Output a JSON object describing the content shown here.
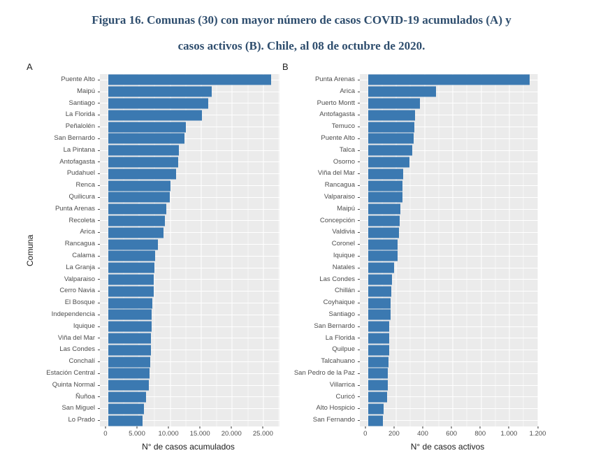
{
  "figure": {
    "title_line1": "Figura 16. Comunas (30) con mayor número de casos COVID-19 acumulados (A) y",
    "title_line2": "casos activos (B). Chile, al 08 de octubre de 2020."
  },
  "colors": {
    "title": "#2f4e6e",
    "bar": "#3b79b1",
    "panel_bg": "#ebebeb",
    "grid_major": "#ffffff",
    "grid_minor": "rgba(255,255,255,0.6)",
    "axis_text": "#4d4d4d"
  },
  "chart_data": [
    {
      "type": "bar",
      "orientation": "horizontal",
      "panel_label": "A",
      "ylabel": "Comuna",
      "xlabel": "N° de casos acumulados",
      "xlim": [
        0,
        27600
      ],
      "grid": true,
      "categories": [
        "Puente Alto",
        "Maipú",
        "Santiago",
        "La Florida",
        "Peñalolén",
        "San Bernardo",
        "La Pintana",
        "Antofagasta",
        "Pudahuel",
        "Renca",
        "Quilicura",
        "Punta Arenas",
        "Recoleta",
        "Arica",
        "Rancagua",
        "Calama",
        "La Granja",
        "Valparaiso",
        "Cerro Navia",
        "El Bosque",
        "Independencia",
        "Iquique",
        "Viña del Mar",
        "Las Condes",
        "Conchalí",
        "Estación Central",
        "Quinta Normal",
        "Ñuñoa",
        "San Miguel",
        "Lo Prado"
      ],
      "values": [
        26300,
        16700,
        16150,
        15100,
        12500,
        12300,
        11450,
        11350,
        10900,
        10050,
        9900,
        9350,
        9150,
        8900,
        8050,
        7600,
        7450,
        7350,
        7300,
        7150,
        7000,
        7000,
        6950,
        6850,
        6800,
        6700,
        6600,
        6100,
        5750,
        5500
      ],
      "x_ticks": {
        "values": [
          0,
          5000,
          10000,
          15000,
          20000,
          25000
        ],
        "labels": [
          "0",
          "5.000",
          "10.000",
          "15.000",
          "20.000",
          "25.000"
        ]
      },
      "x_minor": [
        2500,
        7500,
        12500,
        17500,
        22500,
        27500
      ]
    },
    {
      "type": "bar",
      "orientation": "horizontal",
      "panel_label": "B",
      "ylabel": "",
      "xlabel": "N° de casos activos",
      "xlim": [
        0,
        1200
      ],
      "grid": true,
      "categories": [
        "Punta Arenas",
        "Arica",
        "Puerto Montt",
        "Antofagasta",
        "Temuco",
        "Puente Alto",
        "Talca",
        "Osorno",
        "Viña del Mar",
        "Rancagua",
        "Valparaiso",
        "Maipú",
        "Concepción",
        "Valdivia",
        "Coronel",
        "Iquique",
        "Natales",
        "Las Condes",
        "Chillán",
        "Coyhaique",
        "Santiago",
        "San Bernardo",
        "La Florida",
        "Quilpue",
        "Talcahuano",
        "San Pedro de la Paz",
        "Villarrica",
        "Curicó",
        "Alto Hospicio",
        "San Fernando"
      ],
      "values": [
        1145,
        480,
        370,
        332,
        330,
        322,
        312,
        293,
        248,
        245,
        242,
        227,
        226,
        217,
        212,
        208,
        185,
        168,
        165,
        162,
        158,
        152,
        151,
        150,
        147,
        139,
        138,
        133,
        109,
        108
      ],
      "x_ticks": {
        "values": [
          0,
          200,
          400,
          600,
          800,
          1000,
          1200
        ],
        "labels": [
          "0",
          "200",
          "400",
          "600",
          "800",
          "1.000",
          "1.200"
        ]
      },
      "x_minor": [
        100,
        300,
        500,
        700,
        900,
        1100
      ]
    }
  ]
}
